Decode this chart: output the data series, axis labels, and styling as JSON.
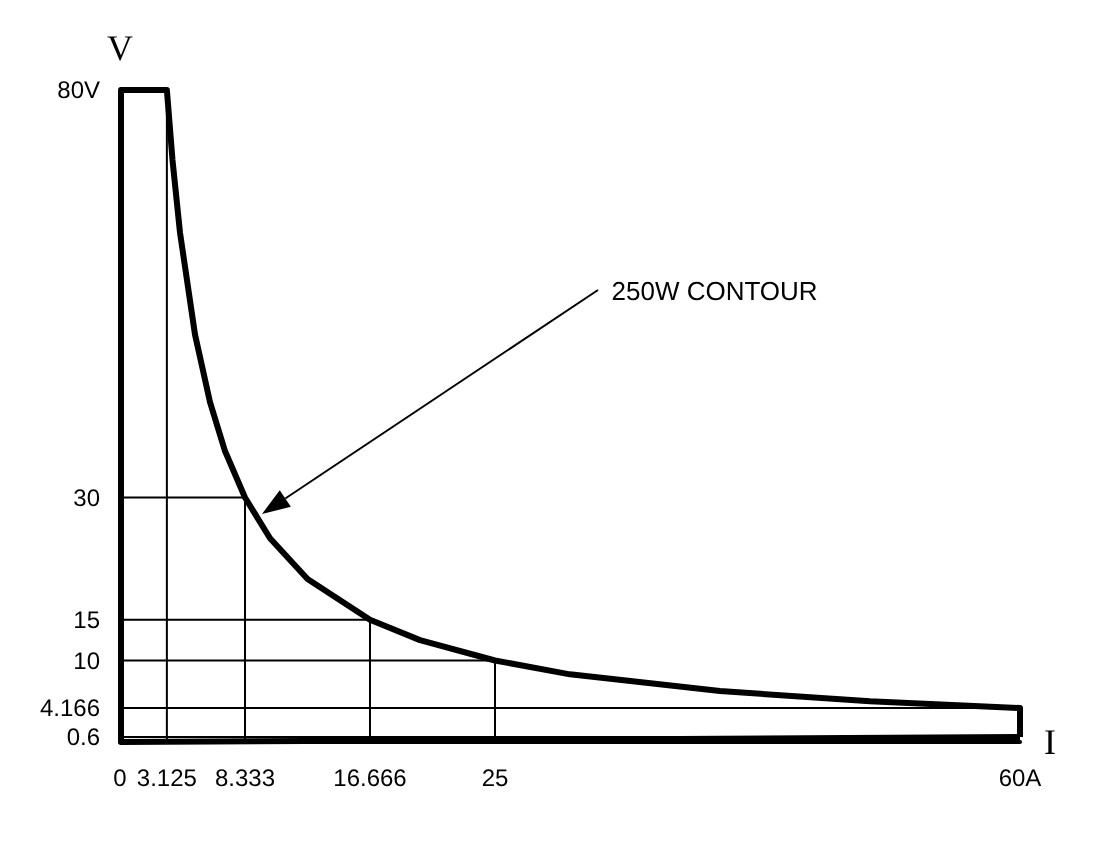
{
  "chart_data": {
    "type": "line",
    "xlabel": "I",
    "ylabel": "V",
    "xlim": [
      0,
      60
    ],
    "ylim": [
      0,
      80
    ],
    "xticks": [
      0,
      3.125,
      8.333,
      16.666,
      25,
      {
        "value": 60,
        "label": "60A"
      }
    ],
    "yticks": [
      0.6,
      4.166,
      10,
      15,
      30,
      {
        "value": 80,
        "label": "80V"
      }
    ],
    "series": [
      {
        "color": "#000000",
        "x": [
          0,
          3.125,
          3.5,
          4,
          5,
          6,
          7,
          8.333,
          10,
          12.5,
          16.666,
          20,
          25,
          30,
          40,
          50,
          60,
          60
        ],
        "values": [
          80,
          80,
          71.4,
          62.5,
          50,
          41.7,
          35.7,
          30,
          25,
          20,
          15,
          12.5,
          10,
          8.3,
          6.25,
          5,
          4.166,
          0.6
        ]
      },
      {
        "color": "#000000",
        "x": [
          0,
          60
        ],
        "values": [
          0,
          0.6
        ]
      },
      {
        "color": "#000000",
        "x": [
          3.125,
          3.125
        ],
        "values": [
          80,
          0
        ]
      },
      {
        "color": "#000000",
        "x": [
          0,
          8.333,
          8.333
        ],
        "values": [
          30,
          30,
          0
        ]
      },
      {
        "color": "#000000",
        "x": [
          0,
          16.666,
          16.666
        ],
        "values": [
          15,
          15,
          0
        ]
      },
      {
        "color": "#000000",
        "x": [
          0,
          25,
          25
        ],
        "values": [
          10,
          10,
          0
        ]
      },
      {
        "color": "#000000",
        "x": [
          0,
          60
        ],
        "values": [
          4.166,
          4.166
        ]
      },
      {
        "color": "#000000",
        "x": [
          0,
          60
        ],
        "values": [
          0.6,
          0.6
        ]
      }
    ],
    "annotations": [
      "250W CONTOUR"
    ]
  }
}
